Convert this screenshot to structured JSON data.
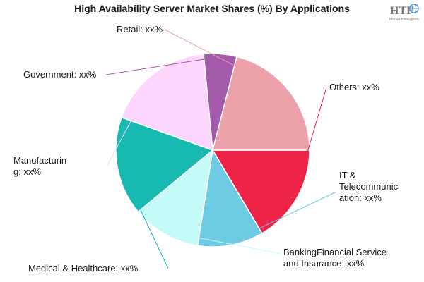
{
  "chart_data": {
    "type": "pie",
    "title": "High Availability Server Market Shares (%) By Applications",
    "slices": [
      {
        "name": "Others",
        "label_lines": [
          "Others: xx%"
        ],
        "value": 16.5,
        "color": "#ee2348"
      },
      {
        "name": "IT & Telecommunication",
        "label_lines": [
          "IT &",
          "Telecommunic",
          "ation: xx%"
        ],
        "value": 11.0,
        "color": "#6dcbe3"
      },
      {
        "name": "BankingFinancial Service and Insurance",
        "label_lines": [
          "BankingFinancial Service",
          "and Insurance: xx%"
        ],
        "value": 11.5,
        "color": "#c4fbf8"
      },
      {
        "name": "Medical & Healthcare",
        "label_lines": [
          "Medical & Healthcare: xx%"
        ],
        "value": 16.5,
        "color": "#17b9b0"
      },
      {
        "name": "Manufacturing",
        "label_lines": [
          "Manufacturin",
          "g: xx%"
        ],
        "value": 18.0,
        "color": "#fcd6fc"
      },
      {
        "name": "Government",
        "label_lines": [
          "Government: xx%"
        ],
        "value": 5.5,
        "color": "#a35aab"
      },
      {
        "name": "Retail",
        "label_lines": [
          "Retail: xx%"
        ],
        "value": 21.0,
        "color": "#eca1ab"
      }
    ]
  },
  "logo": {
    "text": "HTF",
    "subtext": "Market Intelligence",
    "icon": "globe-icon"
  }
}
